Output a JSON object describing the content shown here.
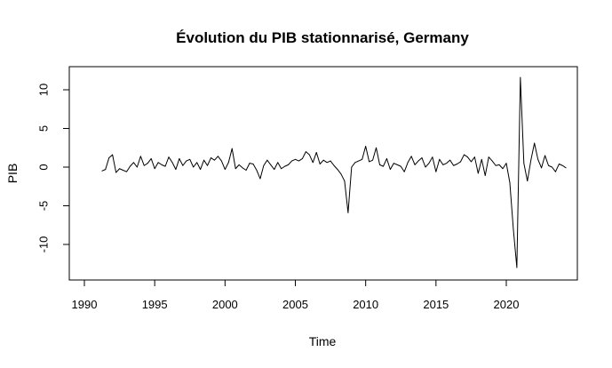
{
  "chart_data": {
    "type": "line",
    "title": "Évolution du PIB stationnarisé, Germany",
    "xlabel": "Time",
    "ylabel": "PIB",
    "xlim": [
      1990,
      2024
    ],
    "ylim": [
      -14,
      13
    ],
    "x_ticks": [
      1990,
      1995,
      2000,
      2005,
      2010,
      2015,
      2020
    ],
    "x_tick_labels": [
      "1990",
      "1995",
      "2000",
      "2005",
      "2010",
      "2015",
      "2020"
    ],
    "y_ticks": [
      -10,
      -5,
      0,
      5,
      10
    ],
    "y_tick_labels": [
      "-10",
      "-5",
      "0",
      "5",
      "10"
    ],
    "grid": false,
    "line_color": "#000000",
    "series": [
      {
        "start": 1991.25,
        "frequency": 4,
        "values": [
          -0.5,
          -0.3,
          1.2,
          1.6,
          -0.7,
          -0.2,
          -0.4,
          -0.6,
          0.1,
          0.6,
          0.0,
          1.4,
          0.2,
          0.5,
          1.1,
          -0.2,
          0.6,
          0.3,
          0.1,
          1.3,
          0.6,
          -0.3,
          1.1,
          0.2,
          0.8,
          1.0,
          0.0,
          0.6,
          -0.3,
          0.9,
          0.2,
          1.2,
          0.9,
          1.4,
          0.8,
          -0.3,
          0.6,
          2.4,
          -0.2,
          0.3,
          -0.1,
          -0.4,
          0.5,
          0.4,
          -0.4,
          -1.5,
          0.2,
          0.9,
          0.3,
          -0.3,
          0.6,
          -0.2,
          0.1,
          0.3,
          0.8,
          1.0,
          0.8,
          1.1,
          2.0,
          1.6,
          0.6,
          1.9,
          0.4,
          0.9,
          0.6,
          0.8,
          0.2,
          -0.3,
          -0.9,
          -1.8,
          -5.9,
          0.0,
          0.6,
          0.8,
          1.0,
          2.7,
          0.7,
          0.9,
          2.5,
          0.3,
          0.1,
          1.1,
          -0.3,
          0.5,
          0.3,
          0.1,
          -0.6,
          0.6,
          1.4,
          0.3,
          0.8,
          1.2,
          0.0,
          0.5,
          1.3,
          -0.6,
          1.0,
          0.3,
          0.5,
          0.9,
          0.2,
          0.4,
          0.7,
          1.6,
          1.3,
          0.7,
          1.3,
          -0.8,
          1.0,
          -1.1,
          1.3,
          0.8,
          0.2,
          0.3,
          -0.2,
          0.5,
          -2.0,
          -8.0,
          -13.0,
          11.6,
          0.5,
          -1.8,
          0.9,
          3.1,
          1.0,
          -0.1,
          1.5,
          0.2,
          0.0,
          -0.6,
          0.4,
          0.2,
          -0.1
        ]
      }
    ]
  }
}
